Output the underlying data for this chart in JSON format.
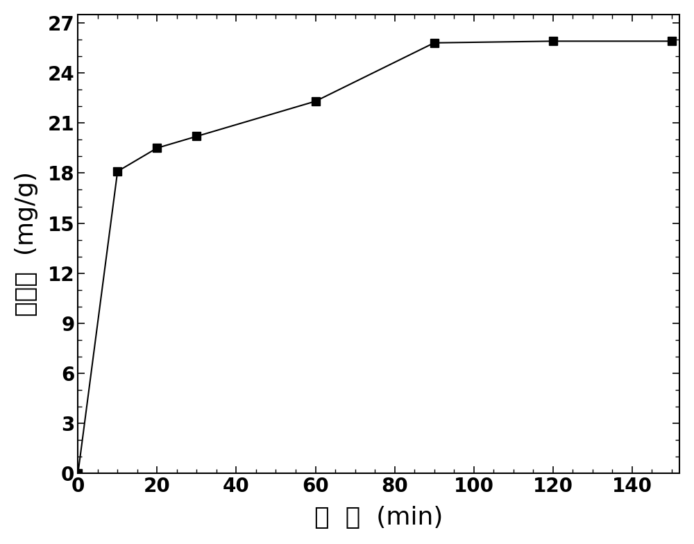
{
  "x": [
    0,
    10,
    20,
    30,
    60,
    90,
    120,
    150
  ],
  "y": [
    0,
    18.1,
    19.5,
    20.2,
    22.3,
    25.8,
    25.9,
    25.9
  ],
  "xlabel": "时  间  (min)",
  "ylabel": "吸附量  (mg/g)",
  "xlim": [
    0,
    152
  ],
  "ylim": [
    0,
    27.5
  ],
  "yticks": [
    0,
    3,
    6,
    9,
    12,
    15,
    18,
    21,
    24,
    27
  ],
  "xticks": [
    0,
    20,
    40,
    60,
    80,
    100,
    120,
    140
  ],
  "line_color": "#000000",
  "marker": "s",
  "marker_size": 9,
  "marker_color": "#000000",
  "line_width": 1.5,
  "background_color": "#ffffff",
  "tick_fontsize": 20,
  "label_fontsize": 26
}
